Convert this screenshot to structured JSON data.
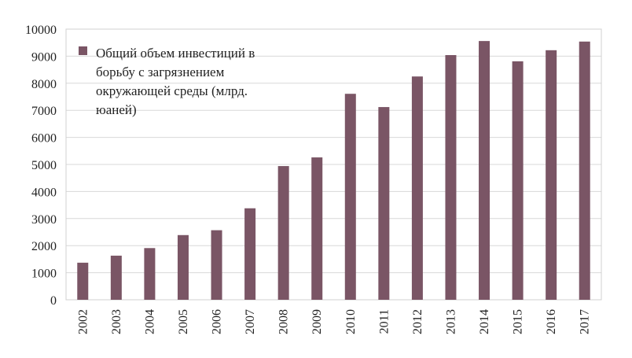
{
  "chart_data": {
    "type": "bar",
    "categories": [
      "2002",
      "2003",
      "2004",
      "2005",
      "2006",
      "2007",
      "2008",
      "2009",
      "2010",
      "2011",
      "2012",
      "2013",
      "2014",
      "2015",
      "2016",
      "2017"
    ],
    "values": [
      1370,
      1630,
      1910,
      2390,
      2570,
      3380,
      4940,
      5260,
      7610,
      7120,
      8250,
      9040,
      9560,
      8810,
      9220,
      9540
    ],
    "ylim": [
      0,
      10000
    ],
    "yticks": [
      "0",
      "1000",
      "2000",
      "3000",
      "4000",
      "5000",
      "6000",
      "7000",
      "8000",
      "9000",
      "10000"
    ],
    "grid": true,
    "bar_color": "#7a5565",
    "legend": {
      "placement": "top-left",
      "lines": [
        "Общий объем инвестиций в",
        "борьбу с загрязнением",
        "окружающей среды (млрд.",
        "юаней)"
      ]
    }
  }
}
